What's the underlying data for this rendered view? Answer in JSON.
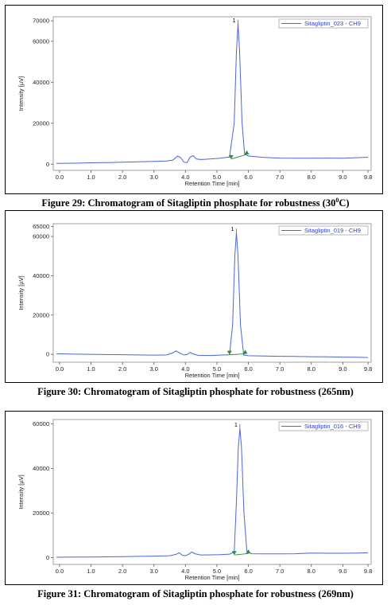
{
  "chart_data": [
    {
      "type": "line",
      "xlabel": "Retention Time [min]",
      "ylabel": "Intensity [µV]",
      "x_ticks": [
        "0.0",
        "1.0",
        "2.0",
        "3.0",
        "4.0",
        "5.0",
        "6.0",
        "7.0",
        "8.0",
        "9.0",
        "9.8"
      ],
      "y_ticks": [
        "0",
        "20000",
        "40000",
        "60000",
        "70000"
      ],
      "xlim": [
        -0.2,
        9.9
      ],
      "ylim": [
        -3000,
        72000
      ],
      "legend": "top-right",
      "series": [
        {
          "name": "Sitagliptin_023 - CH9",
          "color": "#4a66d8",
          "points": [
            [
              -0.1,
              400
            ],
            [
              0.5,
              500
            ],
            [
              1.0,
              700
            ],
            [
              1.5,
              800
            ],
            [
              2.0,
              1000
            ],
            [
              2.5,
              1200
            ],
            [
              3.0,
              1400
            ],
            [
              3.4,
              1600
            ],
            [
              3.6,
              2000
            ],
            [
              3.75,
              4000
            ],
            [
              3.85,
              3200
            ],
            [
              3.95,
              1000
            ],
            [
              4.05,
              800
            ],
            [
              4.15,
              3500
            ],
            [
              4.25,
              4200
            ],
            [
              4.35,
              2500
            ],
            [
              4.5,
              2300
            ],
            [
              4.8,
              2600
            ],
            [
              5.1,
              2900
            ],
            [
              5.4,
              3500
            ],
            [
              5.55,
              20000
            ],
            [
              5.62,
              55000
            ],
            [
              5.67,
              68500
            ],
            [
              5.72,
              55000
            ],
            [
              5.8,
              20000
            ],
            [
              5.88,
              5000
            ],
            [
              6.0,
              4000
            ],
            [
              6.5,
              3300
            ],
            [
              7.0,
              3000
            ],
            [
              7.5,
              2900
            ],
            [
              8.0,
              2900
            ],
            [
              8.5,
              3000
            ],
            [
              9.0,
              2900
            ],
            [
              9.5,
              3200
            ],
            [
              9.8,
              3400
            ]
          ]
        }
      ],
      "peak_label": "1",
      "baseline_start": [
        5.45,
        2500
      ],
      "baseline_end": [
        5.95,
        4800
      ]
    },
    {
      "type": "line",
      "xlabel": "Retention Time [min]",
      "ylabel": "Intensity [µV]",
      "x_ticks": [
        "0.0",
        "1.0",
        "2.0",
        "3.0",
        "4.0",
        "5.0",
        "6.0",
        "7.0",
        "8.0",
        "9.0",
        "9.8"
      ],
      "y_ticks": [
        "0",
        "20000",
        "40000",
        "60000",
        "65000"
      ],
      "xlim": [
        -0.2,
        9.9
      ],
      "ylim": [
        -4000,
        66500
      ],
      "legend": "top-right",
      "series": [
        {
          "name": "Sitagliptin_019 - CH9",
          "color": "#4a66d8",
          "points": [
            [
              -0.1,
              300
            ],
            [
              0.5,
              100
            ],
            [
              1.0,
              0
            ],
            [
              1.5,
              -100
            ],
            [
              2.0,
              -200
            ],
            [
              2.5,
              -300
            ],
            [
              3.0,
              -400
            ],
            [
              3.4,
              -300
            ],
            [
              3.6,
              700
            ],
            [
              3.7,
              1800
            ],
            [
              3.8,
              800
            ],
            [
              3.95,
              -300
            ],
            [
              4.05,
              -100
            ],
            [
              4.15,
              1000
            ],
            [
              4.25,
              200
            ],
            [
              4.4,
              -500
            ],
            [
              4.8,
              -600
            ],
            [
              5.1,
              -400
            ],
            [
              5.4,
              -200
            ],
            [
              5.5,
              15000
            ],
            [
              5.57,
              50000
            ],
            [
              5.62,
              62000
            ],
            [
              5.67,
              50000
            ],
            [
              5.75,
              15000
            ],
            [
              5.85,
              -300
            ],
            [
              6.0,
              -700
            ],
            [
              6.5,
              -900
            ],
            [
              7.0,
              -1000
            ],
            [
              7.5,
              -1100
            ],
            [
              8.0,
              -1200
            ],
            [
              8.5,
              -1300
            ],
            [
              9.0,
              -1400
            ],
            [
              9.5,
              -1500
            ],
            [
              9.8,
              -1600
            ]
          ]
        }
      ],
      "peak_label": "1",
      "baseline_start": [
        5.4,
        -200
      ],
      "baseline_end": [
        5.9,
        300
      ]
    },
    {
      "type": "line",
      "xlabel": "Retention Time [min]",
      "ylabel": "Intensity [µV]",
      "x_ticks": [
        "0.0",
        "1.0",
        "2.0",
        "3.0",
        "4.0",
        "5.0",
        "6.0",
        "7.0",
        "8.0",
        "9.0",
        "9.8"
      ],
      "y_ticks": [
        "0",
        "20000",
        "40000",
        "60000"
      ],
      "xlim": [
        -0.2,
        9.9
      ],
      "ylim": [
        -3000,
        62000
      ],
      "legend": "top-right",
      "series": [
        {
          "name": "Sitagliptin_016 - CH9",
          "color": "#4a66d8",
          "points": [
            [
              -0.1,
              200
            ],
            [
              0.5,
              300
            ],
            [
              1.0,
              300
            ],
            [
              1.5,
              400
            ],
            [
              2.0,
              500
            ],
            [
              2.5,
              600
            ],
            [
              3.0,
              700
            ],
            [
              3.5,
              900
            ],
            [
              3.7,
              1500
            ],
            [
              3.8,
              2200
            ],
            [
              3.9,
              1100
            ],
            [
              4.0,
              900
            ],
            [
              4.1,
              1500
            ],
            [
              4.2,
              2600
            ],
            [
              4.3,
              1800
            ],
            [
              4.5,
              1200
            ],
            [
              4.8,
              1300
            ],
            [
              5.1,
              1400
            ],
            [
              5.4,
              1600
            ],
            [
              5.55,
              2500
            ],
            [
              5.62,
              25000
            ],
            [
              5.68,
              50000
            ],
            [
              5.73,
              58000
            ],
            [
              5.78,
              50000
            ],
            [
              5.86,
              20000
            ],
            [
              5.95,
              3000
            ],
            [
              6.1,
              1800
            ],
            [
              6.5,
              1700
            ],
            [
              7.0,
              1700
            ],
            [
              7.5,
              1800
            ],
            [
              8.0,
              2100
            ],
            [
              8.5,
              2000
            ],
            [
              9.0,
              2000
            ],
            [
              9.5,
              2100
            ],
            [
              9.8,
              2200
            ]
          ]
        }
      ],
      "peak_label": "1",
      "baseline_start": [
        5.55,
        1200
      ],
      "baseline_end": [
        6.0,
        1900
      ]
    }
  ],
  "captions": {
    "fig29_prefix": "Figure 29: Chromatogram of Sitagliptin phosphate for robustness (30",
    "fig29_sup": "0",
    "fig29_suffix": "C)",
    "fig30": "Figure 30: Chromatogram of Sitagliptin phosphate for robustness (265nm)",
    "fig31": "Figure 31: Chromatogram of Sitagliptin phosphate for robustness (269nm)"
  }
}
